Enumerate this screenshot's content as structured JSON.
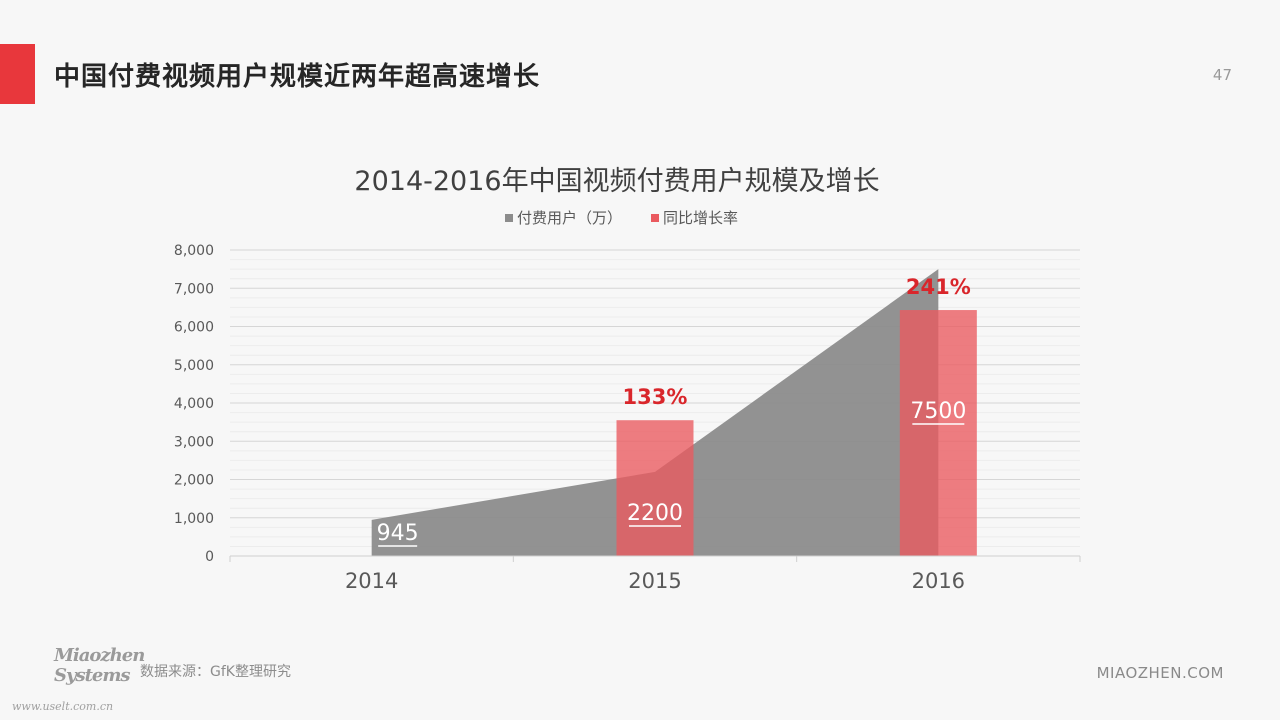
{
  "slide": {
    "title": "中国付费视频用户规模近两年超高速增长",
    "page_number": "47"
  },
  "footer": {
    "source": "数据来源：GfK整理研究",
    "logo_line1": "Miaozhen",
    "logo_line2": "Systems",
    "watermark": "www.uselt.com.cn",
    "site": "MIAOZHEN.COM"
  },
  "colors": {
    "accent": "#e8373c",
    "area": "#8c8c8c",
    "bar": "#ea5a5f",
    "growth_label": "#d9262b"
  },
  "chart_data": {
    "type": "bar",
    "title": "2014-2016年中国视频付费用户规模及增长",
    "categories": [
      "2014",
      "2015",
      "2016"
    ],
    "ylim": [
      0,
      8000
    ],
    "yticks": [
      0,
      1000,
      2000,
      3000,
      4000,
      5000,
      6000,
      7000,
      8000
    ],
    "ytick_labels": [
      "0",
      "1,000",
      "2,000",
      "3,000",
      "4,000",
      "5,000",
      "6,000",
      "7,000",
      "8,000"
    ],
    "grid": true,
    "legend_position": "top",
    "series": [
      {
        "name": "付费用户（万）",
        "kind": "area",
        "values": [
          945,
          2200,
          7500
        ],
        "data_labels": [
          "945",
          "2200",
          "7500"
        ]
      },
      {
        "name": "同比增长率",
        "kind": "bar",
        "values": [
          null,
          3550,
          6430
        ],
        "data_labels": [
          "",
          "133%",
          "241%"
        ]
      }
    ]
  }
}
